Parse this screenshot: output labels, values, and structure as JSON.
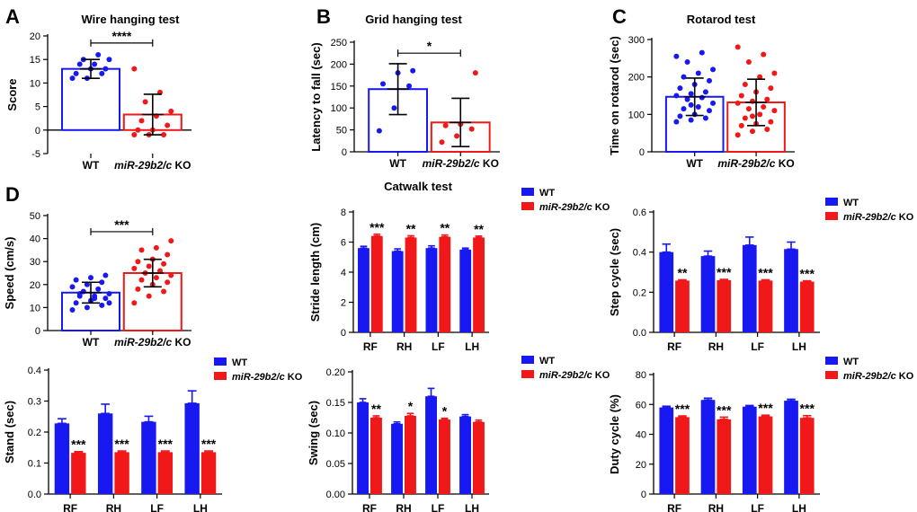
{
  "colors": {
    "wt": "#1818f0",
    "ko": "#f01818",
    "axis": "#000000"
  },
  "chart_data": [
    {
      "id": "A",
      "panel_label": "A",
      "type": "bar",
      "style": "dot",
      "title": "Wire hanging test",
      "ylabel": "Score",
      "ylim": [
        -5,
        20
      ],
      "yticks": [
        -5,
        0,
        5,
        10,
        15,
        20
      ],
      "categories": [
        {
          "plain": "WT",
          "italic": "",
          "suffix": ""
        },
        {
          "plain": "",
          "italic": "miR-29b2/c",
          "suffix": " KO"
        }
      ],
      "means": [
        13,
        3.3
      ],
      "sd": [
        2,
        4.3
      ],
      "points": [
        [
          11,
          11,
          12,
          12,
          13,
          13,
          14,
          14,
          15,
          15,
          16
        ],
        [
          -1,
          -1,
          -1,
          0,
          0,
          1,
          2,
          3,
          4,
          6,
          8,
          13
        ]
      ],
      "sig": {
        "text": "****",
        "bracket": true,
        "y": 18.5
      }
    },
    {
      "id": "B",
      "panel_label": "B",
      "type": "bar",
      "style": "dot",
      "title": "Grid hanging test",
      "ylabel": "Latency to fall (sec)",
      "ylim": [
        0,
        250
      ],
      "yticks": [
        0,
        50,
        100,
        150,
        200,
        250
      ],
      "categories": [
        {
          "plain": "WT",
          "italic": "",
          "suffix": ""
        },
        {
          "plain": "",
          "italic": "miR-29b2/c",
          "suffix": " KO"
        }
      ],
      "means": [
        143,
        67
      ],
      "sd": [
        58,
        55
      ],
      "points": [
        [
          48,
          100,
          150,
          155,
          180,
          185
        ],
        [
          22,
          36,
          52,
          60,
          63,
          180
        ]
      ],
      "sig": {
        "text": "*",
        "bracket": true,
        "y": 225
      }
    },
    {
      "id": "C",
      "panel_label": "C",
      "type": "bar",
      "style": "dot",
      "title": "Rotarod test",
      "ylabel": "Time on rotarod (sec)",
      "ylim": [
        0,
        300
      ],
      "yticks": [
        0,
        100,
        200,
        300
      ],
      "categories": [
        {
          "plain": "WT",
          "italic": "",
          "suffix": ""
        },
        {
          "plain": "",
          "italic": "miR-29b2/c",
          "suffix": " KO"
        }
      ],
      "means": [
        147,
        132
      ],
      "sd": [
        50,
        62
      ],
      "points": [
        [
          80,
          85,
          90,
          95,
          100,
          110,
          115,
          120,
          130,
          140,
          145,
          150,
          155,
          160,
          170,
          180,
          190,
          200,
          210,
          220,
          240,
          265,
          255,
          125
        ],
        [
          45,
          55,
          60,
          70,
          75,
          80,
          90,
          100,
          110,
          115,
          120,
          130,
          135,
          140,
          150,
          160,
          170,
          180,
          200,
          210,
          240,
          260,
          280,
          95
        ]
      ],
      "sig": null
    },
    {
      "id": "D1",
      "panel_label": "D",
      "type": "bar",
      "style": "dot",
      "title": "",
      "ylabel": "Speed (cm/s)",
      "ylim": [
        0,
        50
      ],
      "yticks": [
        0,
        10,
        20,
        30,
        40,
        50
      ],
      "categories": [
        {
          "plain": "WT",
          "italic": "",
          "suffix": ""
        },
        {
          "plain": "",
          "italic": "miR-29b2/c",
          "suffix": " KO"
        }
      ],
      "means": [
        16.5,
        25
      ],
      "sd": [
        4.5,
        6
      ],
      "points": [
        [
          9,
          10,
          11,
          12,
          13,
          14,
          15,
          15,
          16,
          17,
          18,
          19,
          20,
          21,
          22,
          23,
          24,
          16,
          14,
          12
        ],
        [
          12,
          15,
          17,
          18,
          20,
          21,
          22,
          23,
          24,
          25,
          26,
          27,
          28,
          29,
          30,
          31,
          33,
          35,
          36,
          39
        ]
      ],
      "sig": {
        "text": "***",
        "bracket": true,
        "y": 43
      }
    },
    {
      "id": "D2",
      "type": "grouped-bar",
      "title": "Catwalk test",
      "ylabel": "Stride length (cm)",
      "ylim": [
        0,
        8
      ],
      "yticks": [
        0,
        2,
        4,
        6,
        8
      ],
      "decimals": 0,
      "categories": [
        "RF",
        "RH",
        "LF",
        "LH"
      ],
      "series": [
        {
          "name": "WT",
          "values": [
            5.6,
            5.4,
            5.6,
            5.5
          ],
          "err": [
            0.12,
            0.15,
            0.15,
            0.1
          ]
        },
        {
          "name": "miR-29b2/c KO",
          "values": [
            6.4,
            6.3,
            6.35,
            6.3
          ],
          "err": [
            0.12,
            0.12,
            0.12,
            0.1
          ]
        }
      ],
      "sig": [
        "***",
        "**",
        "**",
        "**"
      ],
      "legend": [
        {
          "plain": "WT",
          "italic": "",
          "suffix": ""
        },
        {
          "plain": "",
          "italic": "miR-29b2/c",
          "suffix": " KO"
        }
      ]
    },
    {
      "id": "D3",
      "type": "grouped-bar",
      "title": "",
      "ylabel": "Step cycle (sec)",
      "ylim": [
        0,
        0.6
      ],
      "yticks": [
        0,
        0.2,
        0.4,
        0.6
      ],
      "decimals": 1,
      "categories": [
        "RF",
        "RH",
        "LF",
        "LH"
      ],
      "series": [
        {
          "name": "WT",
          "values": [
            0.4,
            0.38,
            0.435,
            0.415
          ],
          "err": [
            0.04,
            0.025,
            0.04,
            0.035
          ]
        },
        {
          "name": "miR-29b2/c KO",
          "values": [
            0.258,
            0.26,
            0.258,
            0.253
          ],
          "err": [
            0.004,
            0.004,
            0.004,
            0.004
          ]
        }
      ],
      "sig": [
        "**",
        "***",
        "***",
        "***"
      ],
      "legend": [
        {
          "plain": "WT",
          "italic": "",
          "suffix": ""
        },
        {
          "plain": "",
          "italic": "miR-29b2/c",
          "suffix": " KO"
        }
      ]
    },
    {
      "id": "D4",
      "type": "grouped-bar",
      "title": "",
      "ylabel": "Stand (sec)",
      "ylim": [
        0,
        0.4
      ],
      "yticks": [
        0,
        0.1,
        0.2,
        0.3,
        0.4
      ],
      "decimals": 1,
      "categories": [
        "RF",
        "RH",
        "LF",
        "LH"
      ],
      "series": [
        {
          "name": "WT",
          "values": [
            0.228,
            0.26,
            0.233,
            0.293
          ],
          "err": [
            0.015,
            0.03,
            0.018,
            0.04
          ]
        },
        {
          "name": "miR-29b2/c KO",
          "values": [
            0.133,
            0.135,
            0.135,
            0.135
          ],
          "err": [
            0.004,
            0.004,
            0.004,
            0.004
          ]
        }
      ],
      "sig": [
        "***",
        "***",
        "***",
        "***"
      ],
      "legend": [
        {
          "plain": "WT",
          "italic": "",
          "suffix": ""
        },
        {
          "plain": "",
          "italic": "miR-29b2/c",
          "suffix": " KO"
        }
      ]
    },
    {
      "id": "D5",
      "type": "grouped-bar",
      "title": "",
      "ylabel": "Swing (sec)",
      "ylim": [
        0,
        0.2
      ],
      "yticks": [
        0,
        0.05,
        0.1,
        0.15,
        0.2
      ],
      "decimals": 2,
      "categories": [
        "RF",
        "RH",
        "LF",
        "LH"
      ],
      "series": [
        {
          "name": "WT",
          "values": [
            0.15,
            0.115,
            0.16,
            0.127
          ],
          "err": [
            0.006,
            0.003,
            0.013,
            0.003
          ]
        },
        {
          "name": "miR-29b2/c KO",
          "values": [
            0.125,
            0.128,
            0.122,
            0.118
          ],
          "err": [
            0.003,
            0.004,
            0.002,
            0.003
          ]
        }
      ],
      "sig": [
        "**",
        "*",
        "*",
        ""
      ],
      "legend": [
        {
          "plain": "WT",
          "italic": "",
          "suffix": ""
        },
        {
          "plain": "",
          "italic": "miR-29b2/c",
          "suffix": " KO"
        }
      ]
    },
    {
      "id": "D6",
      "type": "grouped-bar",
      "title": "",
      "ylabel": "Duty cycle (%)",
      "ylim": [
        0,
        80
      ],
      "yticks": [
        0,
        20,
        40,
        60,
        80
      ],
      "decimals": 0,
      "categories": [
        "RF",
        "RH",
        "LF",
        "LH"
      ],
      "series": [
        {
          "name": "WT",
          "values": [
            58,
            63,
            58.5,
            62.5
          ],
          "err": [
            0.8,
            1.2,
            0.8,
            1
          ]
        },
        {
          "name": "miR-29b2/c KO",
          "values": [
            51.5,
            50,
            52,
            51
          ],
          "err": [
            0.8,
            1.5,
            0.8,
            1.5
          ]
        }
      ],
      "sig": [
        "***",
        "***",
        "***",
        "***"
      ],
      "legend": [
        {
          "plain": "WT",
          "italic": "",
          "suffix": ""
        },
        {
          "plain": "",
          "italic": "miR-29b2/c",
          "suffix": " KO"
        }
      ]
    }
  ]
}
